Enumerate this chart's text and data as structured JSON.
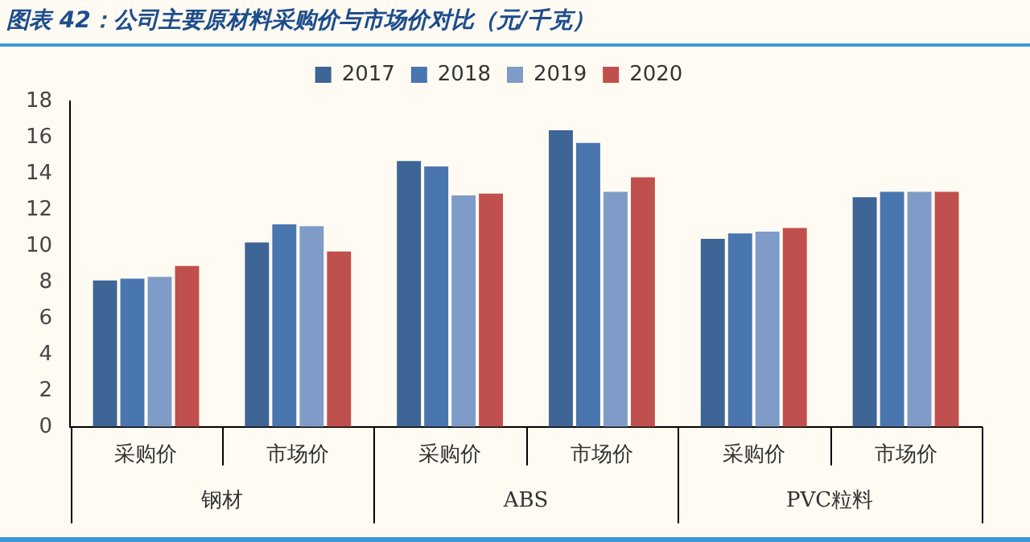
{
  "chart_data": {
    "type": "bar",
    "title": "图表 42：公司主要原材料采购价与市场价对比（元/千克）",
    "categories": [
      "采购价",
      "市场价",
      "采购价",
      "市场价",
      "采购价",
      "市场价"
    ],
    "annotations": [
      "钢材",
      "ABS",
      "PVC粒料"
    ],
    "series": [
      {
        "name": "2017",
        "color": "#3d6596",
        "values": [
          8.1,
          10.2,
          14.7,
          16.4,
          10.4,
          12.7
        ]
      },
      {
        "name": "2018",
        "color": "#4a76b0",
        "values": [
          8.2,
          11.2,
          14.4,
          15.7,
          10.7,
          13.0
        ]
      },
      {
        "name": "2019",
        "color": "#7f9bc8",
        "values": [
          8.3,
          11.1,
          12.8,
          13.0,
          10.8,
          13.0
        ]
      },
      {
        "name": "2020",
        "color": "#c0504d",
        "values": [
          8.9,
          9.7,
          12.9,
          13.8,
          11.0,
          13.0
        ]
      }
    ],
    "ylim": [
      0,
      18
    ],
    "yticks": [
      0,
      2,
      4,
      6,
      8,
      10,
      12,
      14,
      16,
      18
    ],
    "grid": false,
    "legend": "top"
  }
}
